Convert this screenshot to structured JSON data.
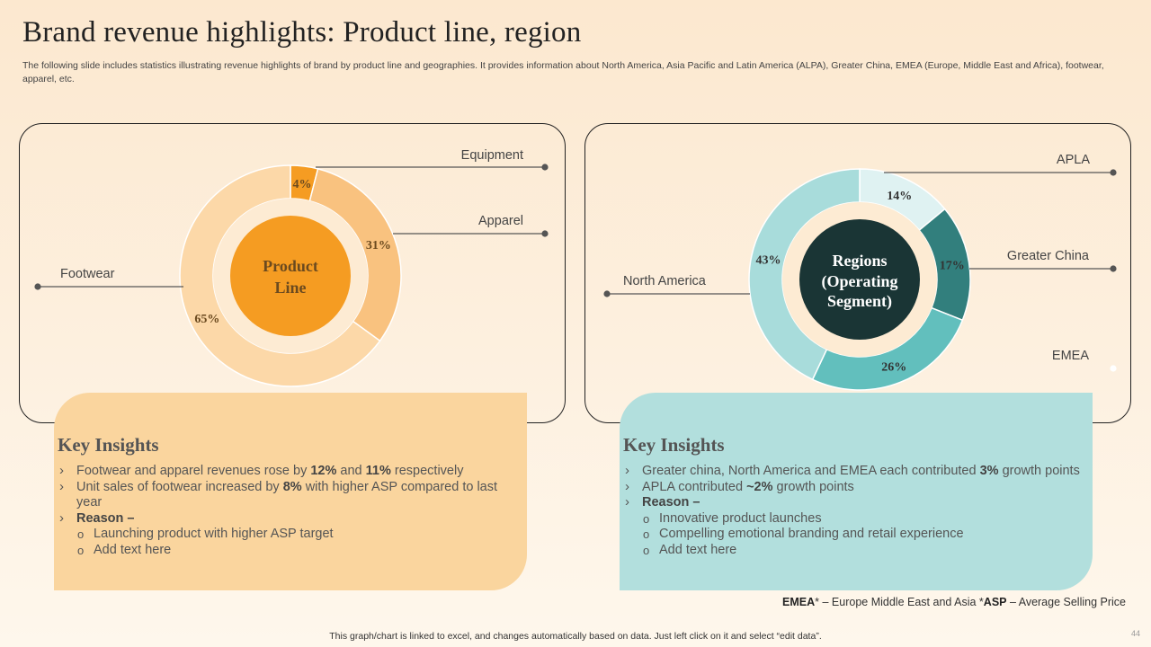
{
  "page": {
    "title": "Brand revenue highlights: Product line, region",
    "subtitle": "The following slide includes statistics illustrating revenue highlights of brand by product line and geographies. It provides information about North America, Asia Pacific and Latin America (ALPA),  Greater China, EMEA  (Europe, Middle East and Africa),  footwear, apparel, etc.",
    "footnote": {
      "emea_abbr": "EMEA",
      "emea_text": "* – Europe  Middle East and Asia *",
      "asp_abbr": "ASP",
      "asp_text": " – Average  Selling Price"
    },
    "bottom_note": "This graph/chart is linked to excel,  and changes automatically based on data. Just left click on it and select “edit data”.",
    "page_number": "44"
  },
  "colors": {
    "orange_dark": "#f59c22",
    "orange_mid": "#f9c27f",
    "orange_light": "#fcd8a8",
    "teal_light": "#dff2f2",
    "teal_dark": "#327f7d",
    "teal_mid": "#62bfbd",
    "teal_pale": "#a8dcdb",
    "center_dark": "#1a3535"
  },
  "chart_data": [
    {
      "type": "pie",
      "variant": "donut",
      "center_label": [
        "Product",
        "Line"
      ],
      "labels": [
        "Equipment",
        "Apparel",
        "Footwear"
      ],
      "values": [
        4,
        31,
        65
      ],
      "value_labels": [
        "4%",
        "31%",
        "65%"
      ]
    },
    {
      "type": "pie",
      "variant": "donut",
      "center_label": [
        "Regions",
        "(Operating",
        "Segment)"
      ],
      "labels": [
        "APLA",
        "Greater China",
        "EMEA",
        "North America"
      ],
      "values": [
        14,
        17,
        26,
        43
      ],
      "value_labels": [
        "14%",
        "17%",
        "26%",
        "43%"
      ]
    }
  ],
  "insights": {
    "product": {
      "title": "Key Insights",
      "b1_a": "Footwear and apparel revenues rose by ",
      "b1_b": "12%",
      "b1_c": " and ",
      "b1_d": "11%",
      "b1_e": " respectively",
      "b2_a": "Unit sales of footwear increased by ",
      "b2_b": "8%",
      "b2_c": " with higher ASP compared to last year",
      "b3": "Reason –",
      "sub": [
        "Launching product with higher ASP target",
        "Add text here"
      ]
    },
    "region": {
      "title": "Key Insights",
      "b1_a": "Greater china, North America and EMEA each contributed ",
      "b1_b": "3%",
      "b1_c": " growth points",
      "b2_a": "APLA contributed ",
      "b2_b": "~2%",
      "b2_c": " growth points",
      "b3": "Reason –",
      "sub": [
        "Innovative  product launches",
        "Compelling emotional branding and retail experience",
        "Add text here"
      ]
    }
  }
}
